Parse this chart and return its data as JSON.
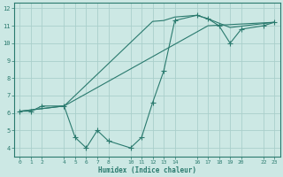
{
  "line1_x": [
    0,
    1,
    2,
    4,
    5,
    6,
    7,
    8,
    10,
    11,
    12,
    13,
    14,
    16,
    17,
    18,
    19,
    20,
    22,
    23
  ],
  "line1_y": [
    6.1,
    6.1,
    6.4,
    6.4,
    4.6,
    4.0,
    5.0,
    4.4,
    4.0,
    4.6,
    6.6,
    8.4,
    11.3,
    11.6,
    11.4,
    11.0,
    10.0,
    10.8,
    11.0,
    11.2
  ],
  "line2_x": [
    0,
    4,
    17,
    23
  ],
  "line2_y": [
    6.1,
    6.4,
    11.0,
    11.2
  ],
  "line3_x": [
    0,
    4,
    12,
    13,
    14,
    16,
    17,
    19,
    23
  ],
  "line3_y": [
    6.1,
    6.4,
    11.25,
    11.3,
    11.5,
    11.6,
    11.4,
    10.9,
    11.2
  ],
  "line_color": "#2a7a6e",
  "bg_color": "#cce8e4",
  "grid_color": "#aacfcb",
  "xlabel": "Humidex (Indice chaleur)",
  "xlim": [
    -0.5,
    23.5
  ],
  "ylim": [
    3.5,
    12.3
  ],
  "xticks": [
    0,
    1,
    2,
    4,
    5,
    6,
    7,
    8,
    10,
    11,
    12,
    13,
    14,
    16,
    17,
    18,
    19,
    20,
    22,
    23
  ],
  "yticks": [
    4,
    5,
    6,
    7,
    8,
    9,
    10,
    11,
    12
  ],
  "markersize": 2.5
}
